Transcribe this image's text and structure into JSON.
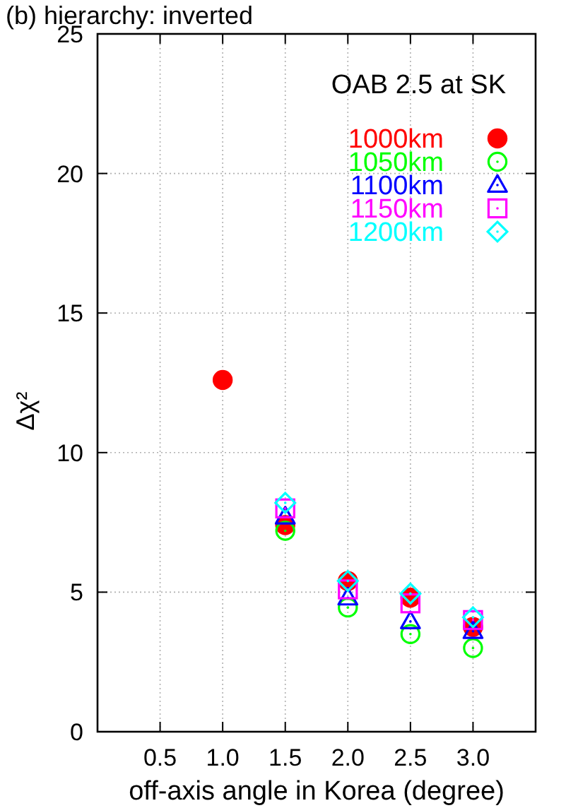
{
  "chart_data": {
    "type": "scatter",
    "title": "(b) hierarchy: inverted",
    "xlabel": "off-axis angle in Korea (degree)",
    "ylabel": "Δχ²",
    "legend_title": "OAB 2.5 at SK",
    "x": [
      1.0,
      1.5,
      2.0,
      2.5,
      3.0
    ],
    "series": [
      {
        "name": "1000km",
        "color": "#ff0000",
        "marker": "circle",
        "values": [
          12.6,
          7.4,
          5.4,
          4.8,
          3.75
        ]
      },
      {
        "name": "1050km",
        "color": "#00ff00",
        "marker": "circle",
        "values": [
          null,
          7.2,
          4.45,
          3.5,
          3.0
        ]
      },
      {
        "name": "1100km",
        "color": "#0000ff",
        "marker": "triangle",
        "values": [
          null,
          7.7,
          4.8,
          3.95,
          3.6
        ]
      },
      {
        "name": "1150km",
        "color": "#ff00ff",
        "marker": "square",
        "values": [
          null,
          8.0,
          5.1,
          4.6,
          4.0
        ]
      },
      {
        "name": "1200km",
        "color": "#00ffff",
        "marker": "diamond",
        "values": [
          null,
          8.2,
          5.4,
          4.95,
          4.1
        ]
      }
    ],
    "xlim": [
      0,
      3.5
    ],
    "xticks": [
      0.5,
      {
        "value": 1,
        "label": "1.0"
      },
      1.5,
      {
        "value": 2,
        "label": "2.0"
      },
      2.5,
      {
        "value": 3,
        "label": "3.0"
      }
    ],
    "ylim": [
      0,
      25
    ],
    "yticks": [
      0,
      5,
      10,
      15,
      20,
      25
    ],
    "grid": true,
    "legend": "top right"
  }
}
